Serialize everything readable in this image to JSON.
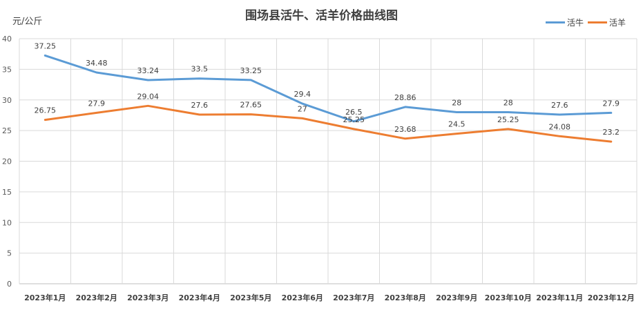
{
  "chart_data": {
    "type": "line",
    "title": "围场县活牛、活羊价格曲线图",
    "ylabel": "元/公斤",
    "xlabel": "",
    "categories": [
      "2023年1月",
      "2023年2月",
      "2023年3月",
      "2023年4月",
      "2023年5月",
      "2023年6月",
      "2023年7月",
      "2023年8月",
      "2023年9月",
      "2023年10月",
      "2023年11月",
      "2023年12月"
    ],
    "ylim": [
      0,
      40
    ],
    "yticks": [
      "0",
      "5",
      "10",
      "15",
      "20",
      "25",
      "30",
      "35",
      "40"
    ],
    "grid": true,
    "legend_position": "top-right",
    "series": [
      {
        "name": "活牛",
        "color": "#5b9bd5",
        "values": [
          37.25,
          34.48,
          33.24,
          33.5,
          33.25,
          29.4,
          26.5,
          28.86,
          28,
          28,
          27.6,
          27.9
        ],
        "labels": [
          "37.25",
          "34.48",
          "33.24",
          "33.5",
          "33.25",
          "29.4",
          "26.5",
          "28.86",
          "28",
          "28",
          "27.6",
          "27.9"
        ]
      },
      {
        "name": "活羊",
        "color": "#ed7d31",
        "values": [
          26.75,
          27.9,
          29.04,
          27.6,
          27.65,
          27,
          25.25,
          23.68,
          24.5,
          25.25,
          24.08,
          23.2
        ],
        "labels": [
          "26.75",
          "27.9",
          "29.04",
          "27.6",
          "27.65",
          "27",
          "25.25",
          "23.68",
          "24.5",
          "25.25",
          "24.08",
          "23.2"
        ]
      }
    ]
  }
}
